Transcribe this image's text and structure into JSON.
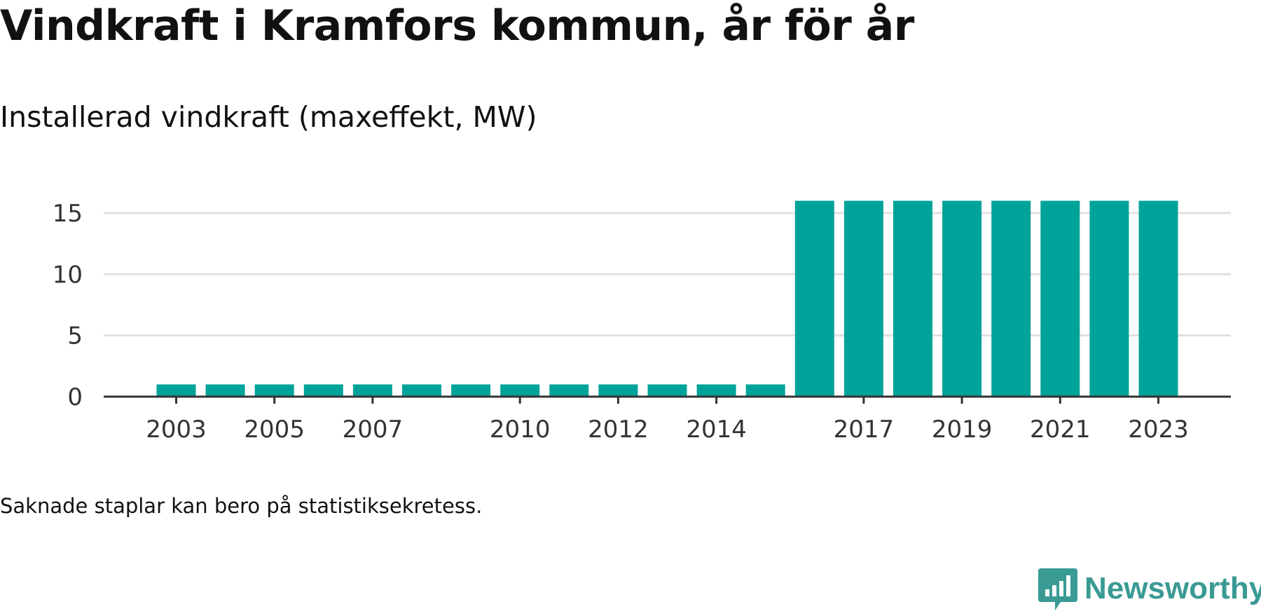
{
  "title": "Vindkraft i Kramfors kommun, år för år",
  "subtitle": "Installerad vindkraft (maxeffekt, MW)",
  "note": "Saknade staplar kan bero på statistiksekretess.",
  "brand": {
    "name": "Newsworthy",
    "icon": "bar-chart-speech-bubble-icon",
    "color": "#3a9a94"
  },
  "chart_data": {
    "type": "bar",
    "categories": [
      "2003",
      "2004",
      "2005",
      "2006",
      "2007",
      "2008",
      "2009",
      "2010",
      "2011",
      "2012",
      "2013",
      "2014",
      "2015",
      "2016",
      "2017",
      "2018",
      "2019",
      "2020",
      "2021",
      "2022",
      "2023"
    ],
    "values": [
      1,
      1,
      1,
      1,
      1,
      1,
      1,
      1,
      1,
      1,
      1,
      1,
      1,
      16,
      16,
      16,
      16,
      16,
      16,
      16,
      16
    ],
    "x_tick_labels": [
      "2003",
      "2005",
      "2007",
      "2010",
      "2012",
      "2014",
      "2017",
      "2019",
      "2021",
      "2023"
    ],
    "y_ticks": [
      0,
      5,
      10,
      15
    ],
    "ylim": [
      0,
      15
    ],
    "grid": true,
    "bar_color": "#00a39a",
    "title": "Vindkraft i Kramfors kommun, år för år",
    "ylabel": "Installerad vindkraft (maxeffekt, MW)",
    "xlabel": ""
  }
}
